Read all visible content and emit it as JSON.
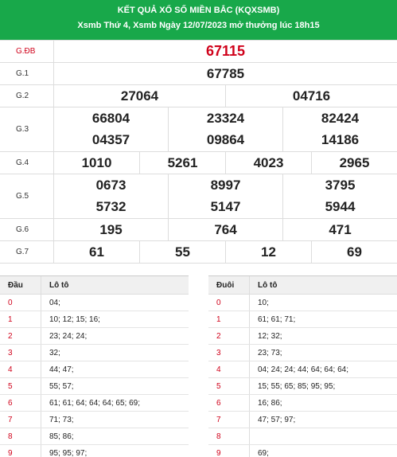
{
  "header": {
    "title": "KẾT QUẢ XỔ SỐ MIỀN BẮC (KQXSMB)",
    "subtitle": "Xsmb Thứ 4, Xsmb Ngày 12/07/2023 mở thưởng lúc 18h15"
  },
  "prizes": [
    {
      "label": "G.ĐB",
      "lines": [
        [
          "67115"
        ]
      ]
    },
    {
      "label": "G.1",
      "lines": [
        [
          "67785"
        ]
      ]
    },
    {
      "label": "G.2",
      "lines": [
        [
          "27064",
          "04716"
        ]
      ]
    },
    {
      "label": "G.3",
      "lines": [
        [
          "66804",
          "23324",
          "82424"
        ],
        [
          "04357",
          "09864",
          "14186"
        ]
      ]
    },
    {
      "label": "G.4",
      "lines": [
        [
          "1010",
          "5261",
          "4023",
          "2965"
        ]
      ]
    },
    {
      "label": "G.5",
      "lines": [
        [
          "0673",
          "8997",
          "3795"
        ],
        [
          "5732",
          "5147",
          "5944"
        ]
      ]
    },
    {
      "label": "G.6",
      "lines": [
        [
          "195",
          "764",
          "471"
        ]
      ]
    },
    {
      "label": "G.7",
      "lines": [
        [
          "61",
          "55",
          "12",
          "69"
        ]
      ]
    }
  ],
  "loto_head": {
    "col1": "Đầu",
    "col2": "Lô tô",
    "rows": [
      {
        "k": "0",
        "v": "04;"
      },
      {
        "k": "1",
        "v": "10; 12; 15; 16;"
      },
      {
        "k": "2",
        "v": "23; 24; 24;"
      },
      {
        "k": "3",
        "v": "32;"
      },
      {
        "k": "4",
        "v": "44; 47;"
      },
      {
        "k": "5",
        "v": "55; 57;"
      },
      {
        "k": "6",
        "v": "61; 61; 64; 64; 64; 65; 69;"
      },
      {
        "k": "7",
        "v": "71; 73;"
      },
      {
        "k": "8",
        "v": "85; 86;"
      },
      {
        "k": "9",
        "v": "95; 95; 97;"
      }
    ]
  },
  "loto_tail": {
    "col1": "Đuôi",
    "col2": "Lô tô",
    "rows": [
      {
        "k": "0",
        "v": "10;"
      },
      {
        "k": "1",
        "v": "61; 61; 71;"
      },
      {
        "k": "2",
        "v": "12; 32;"
      },
      {
        "k": "3",
        "v": "23; 73;"
      },
      {
        "k": "4",
        "v": "04; 24; 24; 44; 64; 64; 64;"
      },
      {
        "k": "5",
        "v": "15; 55; 65; 85; 95; 95;"
      },
      {
        "k": "6",
        "v": "16; 86;"
      },
      {
        "k": "7",
        "v": "47; 57; 97;"
      },
      {
        "k": "8",
        "v": ""
      },
      {
        "k": "9",
        "v": "69;"
      }
    ]
  },
  "colors": {
    "header_bg": "#18a84a",
    "special": "#d0021b"
  }
}
